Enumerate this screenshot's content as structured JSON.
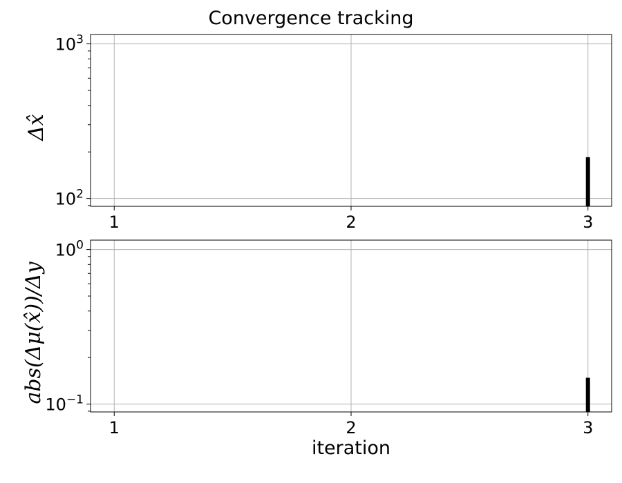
{
  "chart_data": {
    "title": "Convergence tracking",
    "xlabel": "iteration",
    "panels": [
      {
        "id": "top",
        "type": "bar",
        "ylabel": "Δx̂",
        "yscale": "log",
        "ylim": [
          89,
          1150
        ],
        "xlim": [
          0.9,
          3.1
        ],
        "grid": true,
        "x": [
          3
        ],
        "values": [
          185
        ],
        "bar_color": "#000000",
        "xticks": [
          1,
          2,
          3
        ],
        "xtick_labels": [
          "1",
          "2",
          "3"
        ],
        "yticks": [
          100,
          1000
        ],
        "ytick_labels": [
          {
            "base": "10",
            "exp": "2"
          },
          {
            "base": "10",
            "exp": "3"
          }
        ]
      },
      {
        "id": "bottom",
        "type": "bar",
        "ylabel": "abs(Δμ(x̂))/Δy",
        "yscale": "log",
        "ylim": [
          0.089,
          1.15
        ],
        "xlim": [
          0.9,
          3.1
        ],
        "grid": true,
        "x": [
          3
        ],
        "values": [
          0.148
        ],
        "bar_color": "#000000",
        "xticks": [
          1,
          2,
          3
        ],
        "xtick_labels": [
          "1",
          "2",
          "3"
        ],
        "yticks": [
          0.1,
          1
        ],
        "ytick_labels": [
          {
            "base": "10",
            "exp": "−1"
          },
          {
            "base": "10",
            "exp": "0"
          }
        ]
      }
    ]
  }
}
